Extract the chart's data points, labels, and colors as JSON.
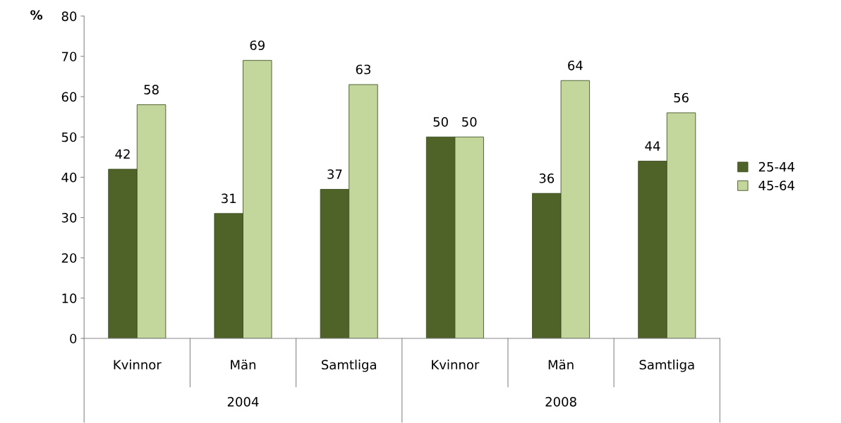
{
  "chart_data": {
    "type": "bar",
    "ylabel": "%",
    "categories": [
      "Kvinnor",
      "Män",
      "Samtliga",
      "Kvinnor",
      "Män",
      "Samtliga"
    ],
    "annotations": [
      "2004",
      "2008"
    ],
    "series": [
      {
        "name": "25-44",
        "color": "#4f6228",
        "values": [
          42,
          31,
          37,
          50,
          36,
          44
        ]
      },
      {
        "name": "45-64",
        "color": "#c3d69b",
        "values": [
          58,
          69,
          63,
          50,
          64,
          56
        ]
      }
    ],
    "ylim": [
      0,
      80
    ],
    "yticks": [
      0,
      10,
      20,
      30,
      40,
      50,
      60,
      70,
      80
    ],
    "grid": false,
    "legend": "right",
    "data_labels": true
  }
}
